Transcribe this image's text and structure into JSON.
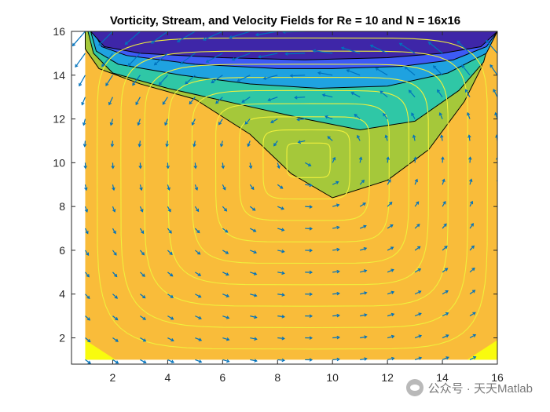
{
  "chart_data": {
    "type": "contour",
    "title": "Vorticity, Stream, and Velocity Fields for Re = 10 and N = 16x16",
    "xlabel": "",
    "ylabel": "",
    "xlim": [
      0.5,
      16
    ],
    "ylim": [
      0.8,
      16
    ],
    "xticks": [
      2,
      4,
      6,
      8,
      10,
      12,
      14,
      16
    ],
    "yticks": [
      2,
      4,
      6,
      8,
      10,
      12,
      14,
      16
    ],
    "grid": false,
    "filled_levels": [
      {
        "name": "level-1",
        "color": "#3e26a8",
        "boundary": [
          [
            1.2,
            16
          ],
          [
            1.7,
            15.3
          ],
          [
            3,
            15.0
          ],
          [
            6,
            14.8
          ],
          [
            9,
            14.7
          ],
          [
            12,
            14.8
          ],
          [
            14,
            15.0
          ],
          [
            15.4,
            15.3
          ],
          [
            16,
            16
          ]
        ]
      },
      {
        "name": "level-2",
        "color": "#3d5bf5",
        "boundary": [
          [
            1.3,
            16
          ],
          [
            1.6,
            15.3
          ],
          [
            2.5,
            14.9
          ],
          [
            5,
            14.5
          ],
          [
            8,
            14.3
          ],
          [
            10,
            14.3
          ],
          [
            12.5,
            14.4
          ],
          [
            14.4,
            14.7
          ],
          [
            15.6,
            15.3
          ],
          [
            16,
            16
          ]
        ]
      },
      {
        "name": "level-3",
        "color": "#1fa2e0",
        "boundary": [
          [
            1.2,
            16
          ],
          [
            1.4,
            15.1
          ],
          [
            2.2,
            14.5
          ],
          [
            4.5,
            14.0
          ],
          [
            7,
            13.6
          ],
          [
            9.5,
            13.4
          ],
          [
            12,
            13.5
          ],
          [
            14.2,
            14.1
          ],
          [
            15.6,
            15.0
          ],
          [
            16,
            16
          ]
        ]
      },
      {
        "name": "level-4",
        "color": "#2fc7a6",
        "boundary": [
          [
            1.1,
            16
          ],
          [
            1.3,
            15.0
          ],
          [
            2,
            14.1
          ],
          [
            4,
            13.4
          ],
          [
            6.5,
            12.7
          ],
          [
            9,
            12.0
          ],
          [
            11,
            11.5
          ],
          [
            13,
            11.9
          ],
          [
            14.6,
            13.3
          ],
          [
            15.5,
            14.6
          ],
          [
            15.8,
            16
          ]
        ]
      },
      {
        "name": "level-5",
        "color": "#a5c83a",
        "boundary": [
          [
            1.0,
            16
          ],
          [
            1.0,
            15.2
          ],
          [
            1.5,
            14.3
          ],
          [
            3,
            13.6
          ],
          [
            5,
            12.9
          ],
          [
            7,
            11.3
          ],
          [
            8.5,
            9.5
          ],
          [
            10,
            8.4
          ],
          [
            12,
            9.2
          ],
          [
            13.5,
            10.6
          ],
          [
            14.8,
            12.8
          ],
          [
            15.4,
            14.3
          ],
          [
            15.8,
            16
          ]
        ]
      }
    ],
    "base_fill": "#f9bc3a",
    "corner_fill": "#f9fb0e",
    "contour_line_color": "#000000",
    "stream_line_color": "#f0f03c",
    "stream_center": [
      9.2,
      10.3
    ],
    "vector_color": "#0072bd",
    "watermark": "公众号 · 天天Matlab"
  }
}
